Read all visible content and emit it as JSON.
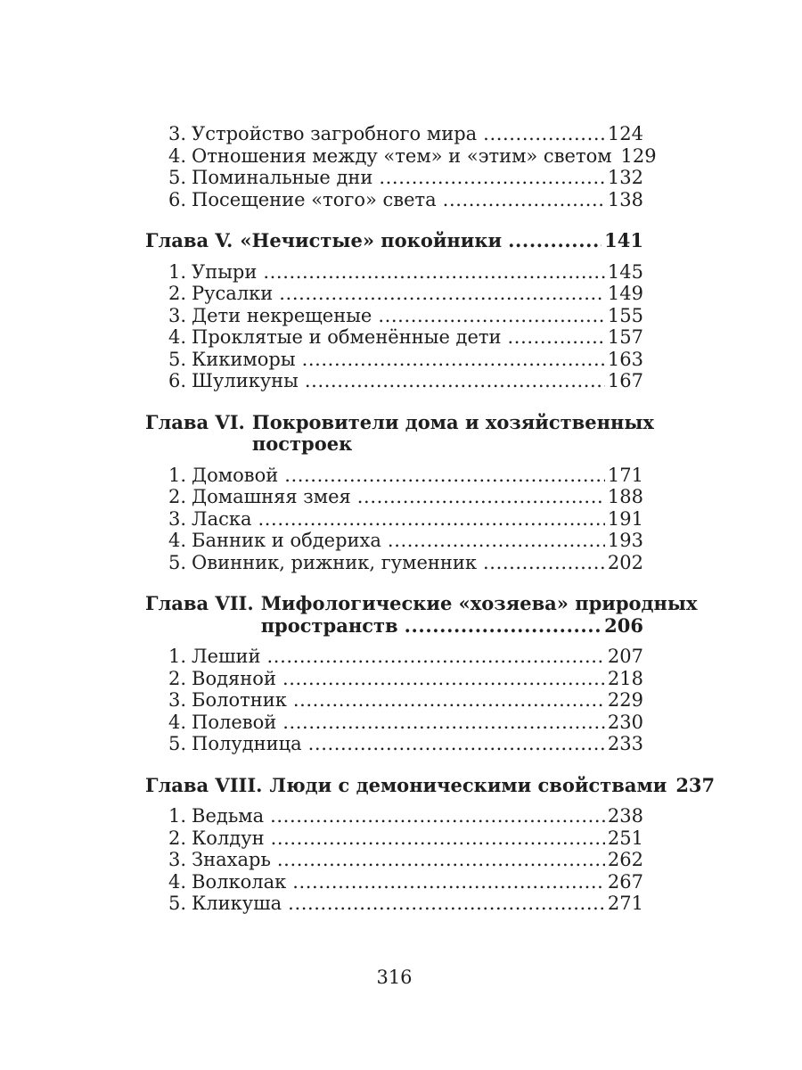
{
  "document": {
    "kind": "book-table-of-contents-page",
    "language": "ru",
    "footer_page_number": "316",
    "text_color": "#1e1e1e",
    "background_color": "#ffffff"
  },
  "toc_blocks": [
    {
      "kind": "entries",
      "entries": [
        {
          "num": "3.",
          "title": "Устройство загробного мира",
          "page": "124",
          "dots": true
        },
        {
          "num": "4.",
          "title": "Отношения между «тем» и «этим» светом",
          "page": "129",
          "dots": false
        },
        {
          "num": "5.",
          "title": "Поминальные дни",
          "page": "132",
          "dots": true
        },
        {
          "num": "6.",
          "title": "Посещение «того» света",
          "page": "138",
          "dots": true
        }
      ]
    },
    {
      "kind": "chapter",
      "label": "Глава V.",
      "lines": [
        {
          "text": "«Нечистые» покойники",
          "page": "141",
          "dots": true
        }
      ]
    },
    {
      "kind": "entries",
      "entries": [
        {
          "num": "1.",
          "title": "Упыри",
          "page": "145",
          "dots": true
        },
        {
          "num": "2.",
          "title": "Русалки",
          "page": "149",
          "dots": true
        },
        {
          "num": "3.",
          "title": "Дети некрещеные",
          "page": "155",
          "dots": true
        },
        {
          "num": "4.",
          "title": "Проклятые и обменённые дети",
          "page": "157",
          "dots": true
        },
        {
          "num": "5.",
          "title": "Кикиморы",
          "page": "163",
          "dots": true
        },
        {
          "num": "6.",
          "title": "Шуликуны",
          "page": "167",
          "dots": true
        }
      ]
    },
    {
      "kind": "chapter",
      "label": "Глава VI.",
      "lines": [
        {
          "text": "Покровители дома и хозяйственных"
        },
        {
          "text": "построек"
        }
      ]
    },
    {
      "kind": "entries",
      "entries": [
        {
          "num": "1.",
          "title": "Домовой",
          "page": "171",
          "dots": true
        },
        {
          "num": "2.",
          "title": "Домашняя змея",
          "page": "188",
          "dots": true
        },
        {
          "num": "3.",
          "title": "Ласка",
          "page": "191",
          "dots": true
        },
        {
          "num": "4.",
          "title": "Банник и обдериха",
          "page": "193",
          "dots": true
        },
        {
          "num": "5.",
          "title": "Овинник, рижник, гуменник",
          "page": "202",
          "dots": true
        }
      ]
    },
    {
      "kind": "chapter",
      "label": "Глава VII.",
      "lines": [
        {
          "text": "Мифологические «хозяева» природных"
        },
        {
          "text": "пространств",
          "page": "206",
          "dots": true
        }
      ]
    },
    {
      "kind": "entries",
      "entries": [
        {
          "num": "1.",
          "title": "Леший",
          "page": "207",
          "dots": true
        },
        {
          "num": "2.",
          "title": "Водяной",
          "page": "218",
          "dots": true
        },
        {
          "num": "3.",
          "title": "Болотник",
          "page": "229",
          "dots": true
        },
        {
          "num": "4.",
          "title": "Полевой",
          "page": "230",
          "dots": true
        },
        {
          "num": "5.",
          "title": "Полудница",
          "page": "233",
          "dots": true
        }
      ]
    },
    {
      "kind": "chapter",
      "label": "Глава VIII.",
      "lines": [
        {
          "text": "Люди с демоническими свойствами",
          "page": "237",
          "dots": false
        }
      ]
    },
    {
      "kind": "entries",
      "entries": [
        {
          "num": "1.",
          "title": "Ведьма",
          "page": "238",
          "dots": true
        },
        {
          "num": "2.",
          "title": "Колдун",
          "page": "251",
          "dots": true
        },
        {
          "num": "3.",
          "title": "Знахарь",
          "page": "262",
          "dots": true
        },
        {
          "num": "4.",
          "title": "Волколак",
          "page": "267",
          "dots": true
        },
        {
          "num": "5.",
          "title": "Кликуша",
          "page": "271",
          "dots": true
        }
      ]
    }
  ]
}
